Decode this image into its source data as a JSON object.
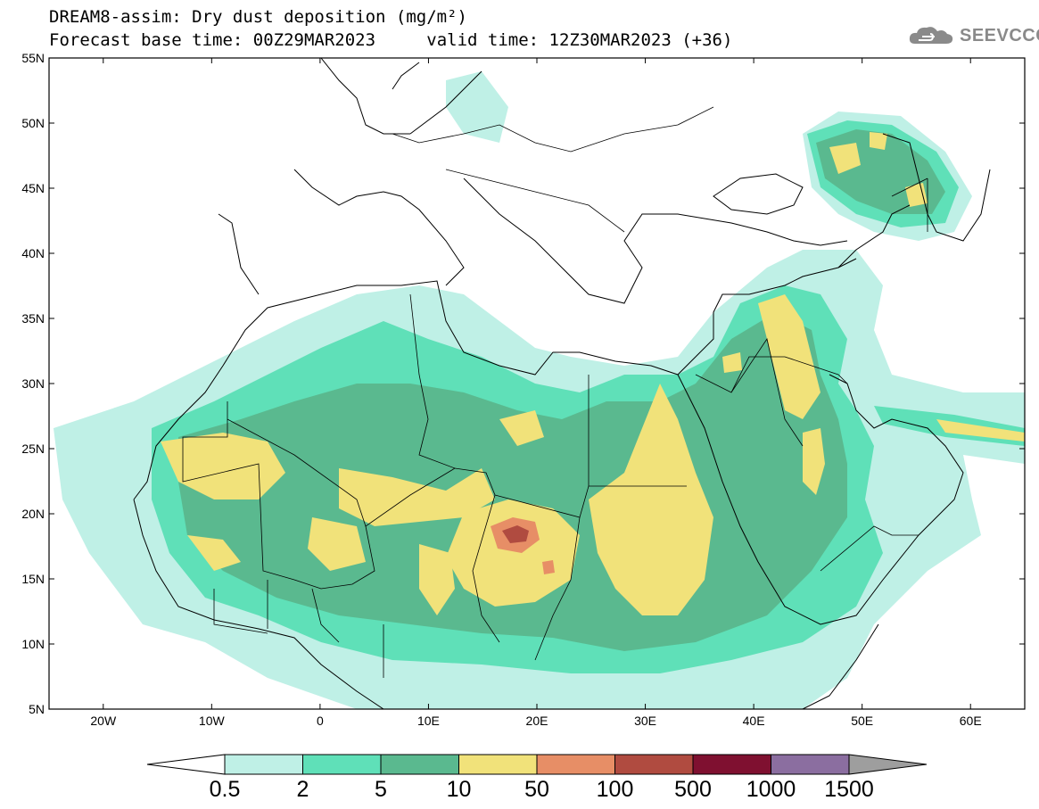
{
  "title_line1": "DREAM8-assim: Dry dust deposition (mg/m²)",
  "title_line2_base": "Forecast base time: 00Z29MAR2023",
  "title_line2_valid": "valid time: 12Z30MAR2023 (+36)",
  "logo_text": "SEEVCCC",
  "map": {
    "lon_range": [
      -25,
      65
    ],
    "lat_range": [
      5,
      55
    ],
    "lat_labels": [
      "55N",
      "50N",
      "45N",
      "40N",
      "35N",
      "30N",
      "25N",
      "20N",
      "15N",
      "10N",
      "5N"
    ],
    "lon_labels": [
      "20W",
      "10W",
      "0",
      "10E",
      "20E",
      "30E",
      "40E",
      "50E",
      "60E"
    ],
    "levels": [
      "0.5",
      "2",
      "5",
      "10",
      "50",
      "100",
      "500",
      "1000",
      "1500"
    ],
    "colors": [
      "#bff0e6",
      "#5fe0b8",
      "#5ab98f",
      "#f1e27a",
      "#e78e66",
      "#b04b40",
      "#7f1030",
      "#8b6ea0",
      "#9e9e9e"
    ]
  }
}
